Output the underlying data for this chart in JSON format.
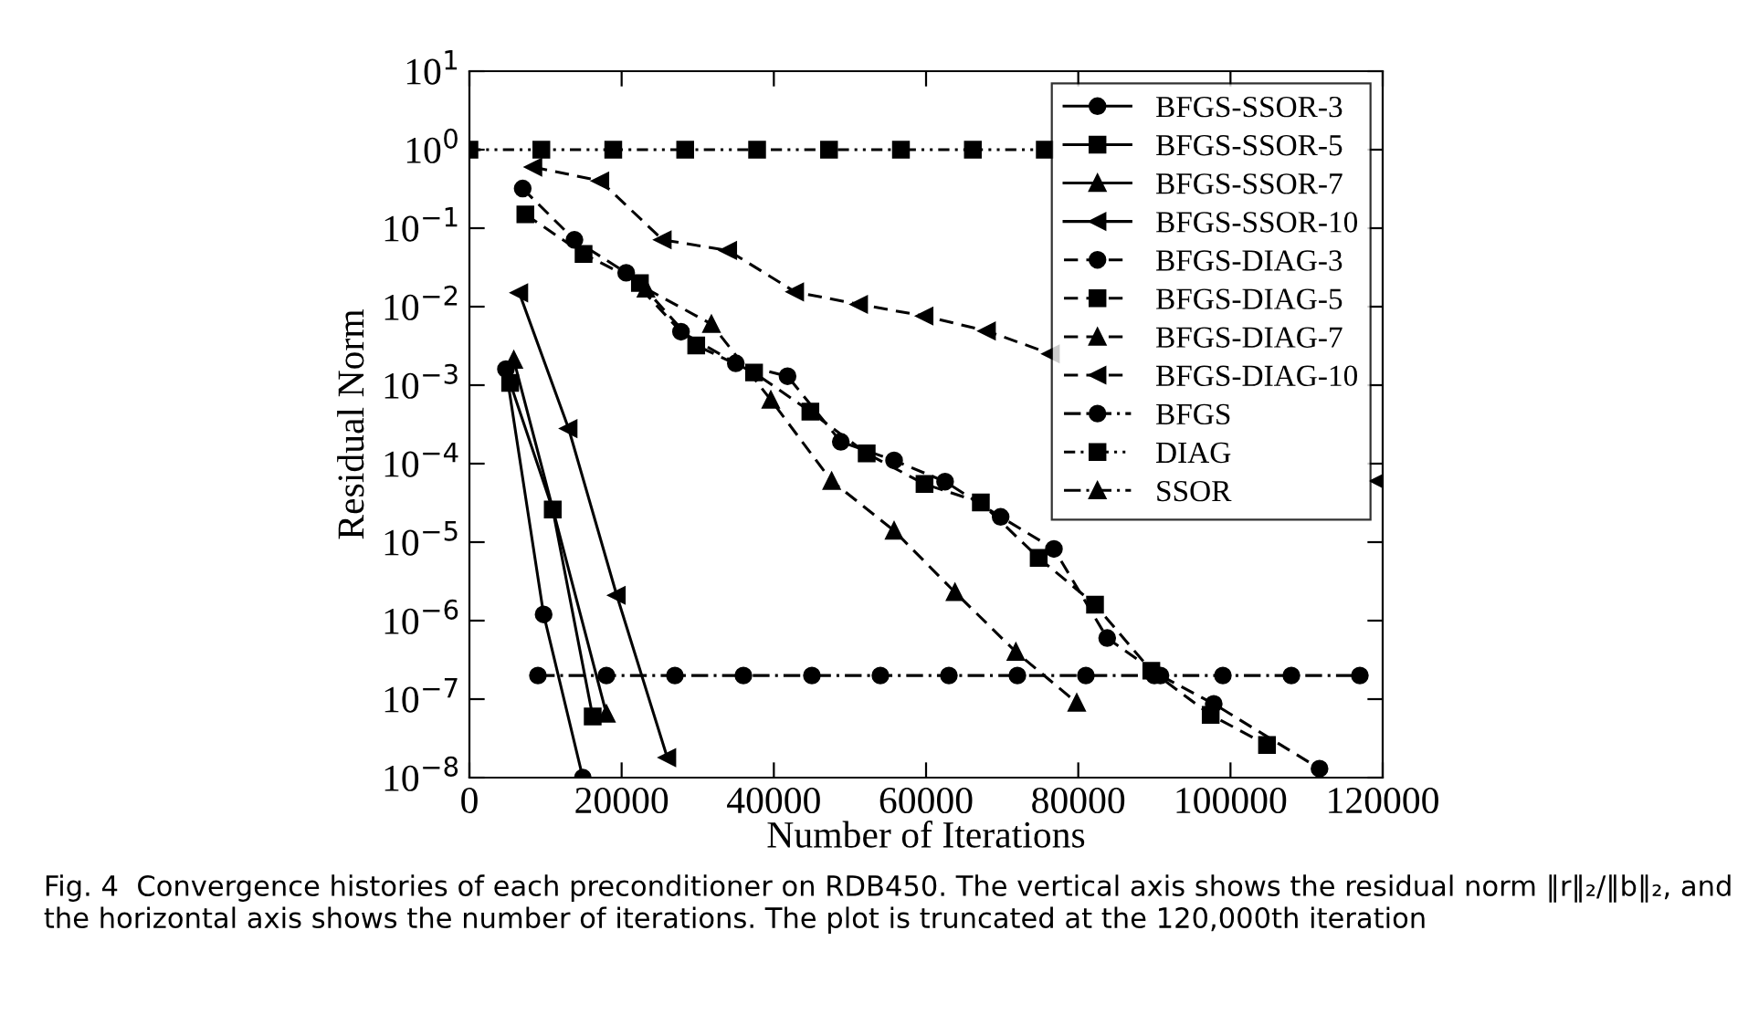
{
  "chart_data": {
    "type": "line",
    "xlabel": "Number of Iterations",
    "ylabel": "Residual Norm",
    "log": "y",
    "legend": "top right",
    "grid": false,
    "xlim": [
      0,
      120000
    ],
    "xticks": [
      0,
      20000,
      40000,
      60000,
      80000,
      100000,
      120000
    ],
    "ylim": [
      1e-08,
      10
    ],
    "yticks": [
      {
        "value": 10,
        "label": "10$^{1}$"
      },
      {
        "value": 1,
        "label": "10$^{0}$"
      },
      {
        "value": 0.1,
        "label": "10$^{−1}$"
      },
      {
        "value": 0.01,
        "label": "10$^{−2}$"
      },
      {
        "value": 0.001,
        "label": "10$^{−3}$"
      },
      {
        "value": 0.0001,
        "label": "10$^{−4}$"
      },
      {
        "value": 1e-05,
        "label": "10$^{−5}$"
      },
      {
        "value": 1e-06,
        "label": "10$^{−6}$"
      },
      {
        "value": 1e-07,
        "label": "10$^{−7}$"
      },
      {
        "value": 1e-08,
        "label": "10$^{−8}$"
      }
    ],
    "series": [
      {
        "name": "BFGS-SSOR-3",
        "color": "#000000",
        "marker": "circle",
        "line_style": "solid",
        "x": [
          4800,
          9750,
          14900
        ],
        "values": [
          0.0016,
          1.2e-06,
          1e-08
        ]
      },
      {
        "name": "BFGS-SSOR-5",
        "color": "#000000",
        "marker": "square",
        "line_style": "solid",
        "x": [
          5350,
          10950,
          16200
        ],
        "values": [
          0.00107,
          2.6e-05,
          6e-08
        ]
      },
      {
        "name": "BFGS-SSOR-7",
        "color": "#000000",
        "marker": "triangle",
        "line_style": "solid",
        "x": [
          5830,
          18000
        ],
        "values": [
          0.0021,
          6.5e-08
        ]
      },
      {
        "name": "BFGS-SSOR-10",
        "color": "#000000",
        "marker": "triangle-left",
        "line_style": "solid",
        "x": [
          6550,
          13030,
          19360,
          26000
        ],
        "values": [
          0.015,
          0.00028,
          2.1e-06,
          1.8e-08
        ]
      },
      {
        "name": "BFGS-DIAG-3",
        "color": "#000000",
        "marker": "circle",
        "line_style": "dashed",
        "x": [
          7000,
          13800,
          20600,
          27800,
          35000,
          41800,
          48800,
          55800,
          62500,
          69800,
          76800,
          83800,
          90800,
          97800,
          111700
        ],
        "values": [
          0.32,
          0.071,
          0.027,
          0.0048,
          0.0019,
          0.0013,
          0.00019,
          0.00011,
          5.9e-05,
          2.1e-05,
          8.2e-06,
          6e-07,
          2e-07,
          8.7e-08,
          1.3e-08
        ]
      },
      {
        "name": "BFGS-DIAG-5",
        "color": "#000000",
        "marker": "square",
        "line_style": "dashed",
        "x": [
          7350,
          15000,
          22400,
          29800,
          37400,
          44800,
          52200,
          59800,
          67200,
          74800,
          82200,
          89600,
          97400,
          104800
        ],
        "values": [
          0.15,
          0.047,
          0.02,
          0.0032,
          0.00145,
          0.00046,
          0.000135,
          5.5e-05,
          3.2e-05,
          6.3e-06,
          1.6e-06,
          2.3e-07,
          6.3e-08,
          2.6e-08
        ]
      },
      {
        "name": "BFGS-DIAG-7",
        "color": "#000000",
        "marker": "triangle",
        "line_style": "dashed",
        "x": [
          23200,
          31800,
          39600,
          47600,
          55800,
          63800,
          71800,
          79800
        ],
        "values": [
          0.017,
          0.006,
          0.00065,
          6e-05,
          1.4e-05,
          2.3e-06,
          4e-07,
          9e-08
        ]
      },
      {
        "name": "BFGS-DIAG-10",
        "color": "#000000",
        "marker": "triangle-left",
        "line_style": "dashed",
        "x": [
          8400,
          17200,
          25400,
          34000,
          42800,
          51200,
          59800,
          68000,
          76400,
          98000,
          119500
        ],
        "values": [
          0.6,
          0.4,
          0.071,
          0.052,
          0.0154,
          0.0107,
          0.0076,
          0.0049,
          0.0025,
          null,
          6e-05
        ]
      },
      {
        "name": "BFGS",
        "color": "#000000",
        "marker": "circle",
        "line_style": "dashdot",
        "x": [
          9000,
          18000,
          27000,
          36000,
          45000,
          54000,
          63000,
          72000,
          81000,
          90000,
          99000,
          108000,
          117000
        ],
        "values": [
          2e-07,
          2e-07,
          2e-07,
          2e-07,
          2e-07,
          2e-07,
          2e-07,
          2e-07,
          2e-07,
          2e-07,
          2e-07,
          2e-07,
          2e-07
        ]
      },
      {
        "name": "DIAG",
        "color": "#000000",
        "marker": "square",
        "line_style": "dashdotdot",
        "x": [
          0,
          9450,
          18900,
          28350,
          37800,
          47250,
          56700,
          66150,
          75600
        ],
        "values": [
          1,
          1,
          1,
          1,
          1,
          1,
          1,
          1,
          1
        ]
      },
      {
        "name": "SSOR",
        "color": "#000000",
        "marker": "triangle",
        "line_style": "dashdot"
      }
    ],
    "annotations": [
      "Fig. 4  Convergence histories of each preconditioner on RDB450. The vertical axis shows the residual norm ‖r‖₂/‖b‖₂, and the horizontal axis shows the number of iterations. The plot is truncated at the 120,000th iteration"
    ]
  }
}
